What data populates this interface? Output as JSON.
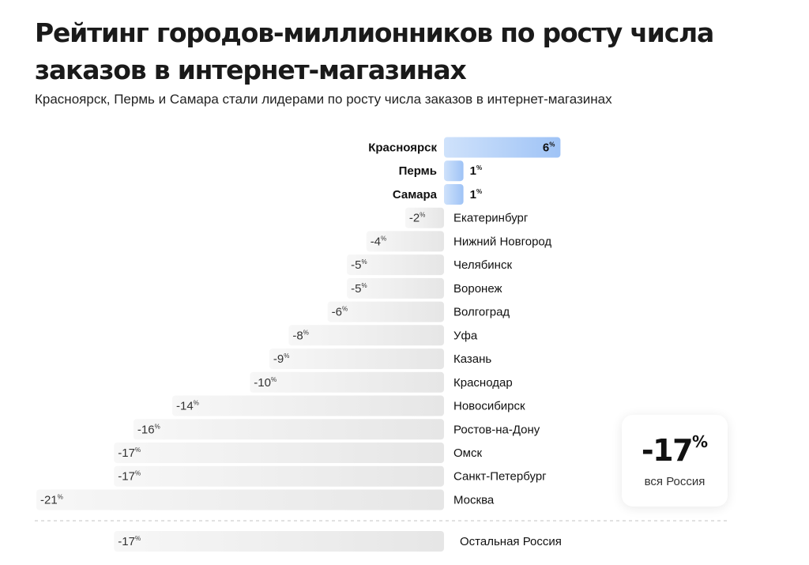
{
  "title": "Рейтинг городов-миллионников по росту числа заказов в интернет-магазинах",
  "subtitle": "Красноярск, Пермь и Самара стали лидерами по росту числа заказов в интернет-магазинах",
  "summary": {
    "value": "-17",
    "unit": "%",
    "label": "вся Россия"
  },
  "colors": {
    "positive_bar": "#cfe2fb",
    "positive_bar_dark": "#9fc3f6",
    "negative_bar": "#e6e6e6",
    "negative_bar_light": "#f7f7f7",
    "text": "#111111"
  },
  "chart_data": {
    "type": "bar",
    "orientation": "horizontal",
    "value_unit": "%",
    "categories": [
      "Красноярск",
      "Пермь",
      "Самара",
      "Екатеринбург",
      "Нижний Новгород",
      "Челябинск",
      "Воронеж",
      "Волгоград",
      "Уфа",
      "Казань",
      "Краснодар",
      "Новосибирск",
      "Ростов-на-Дону",
      "Омск",
      "Санкт-Петербург",
      "Москва"
    ],
    "values": [
      6,
      1,
      1,
      -2,
      -4,
      -5,
      -5,
      -6,
      -8,
      -9,
      -10,
      -14,
      -16,
      -17,
      -17,
      -21
    ],
    "highlighted": [
      "Красноярск",
      "Пермь",
      "Самара"
    ],
    "extra": {
      "category": "Остальная Россия",
      "value": -17
    },
    "xlim": [
      -21,
      6
    ],
    "grid": false
  }
}
